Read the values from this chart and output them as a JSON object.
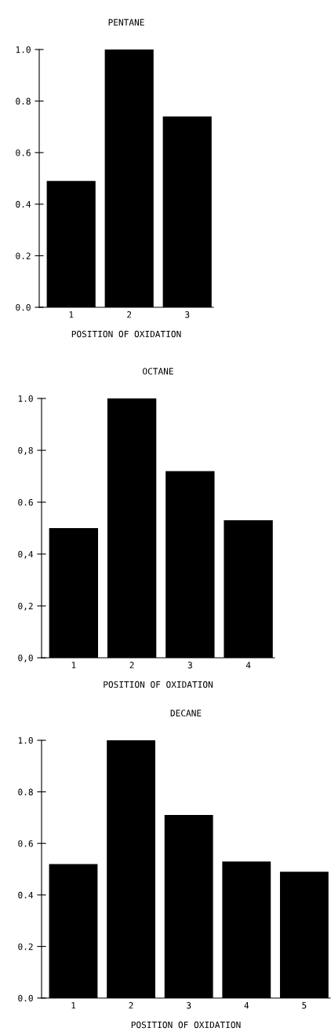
{
  "chart_data": [
    {
      "type": "bar",
      "title": "PENTANE",
      "xlabel": "POSITION OF OXIDATION",
      "categories": [
        "1",
        "2",
        "3"
      ],
      "values": [
        0.49,
        1.0,
        0.74
      ],
      "color": "#000000",
      "ylim": [
        0,
        1.0
      ],
      "yticks": [
        {
          "value": 0,
          "label": "0.0"
        },
        {
          "value": 0.2,
          "label": "0.2"
        },
        {
          "value": 0.4,
          "label": "0.4"
        },
        {
          "value": 0.6,
          "label": "0.6"
        },
        {
          "value": 0.8,
          "label": "0.8"
        },
        {
          "value": 1.0,
          "label": "1.0"
        }
      ],
      "grid": false,
      "legend": false
    },
    {
      "type": "bar",
      "title": "OCTANE",
      "xlabel": "POSITION OF OXIDATION",
      "categories": [
        "1",
        "2",
        "3",
        "4"
      ],
      "values": [
        0.5,
        1.0,
        0.72,
        0.53
      ],
      "color": "#000000",
      "ylim": [
        0,
        1.0
      ],
      "yticks": [
        {
          "value": 0,
          "label": "0,0"
        },
        {
          "value": 0.2,
          "label": "0,2"
        },
        {
          "value": 0.4,
          "label": "0,4"
        },
        {
          "value": 0.6,
          "label": "0.6"
        },
        {
          "value": 0.8,
          "label": "0,8"
        },
        {
          "value": 1.0,
          "label": "1.0"
        }
      ],
      "grid": false,
      "legend": false
    },
    {
      "type": "bar",
      "title": "DECANE",
      "xlabel": "POSITION OF OXIDATION",
      "categories": [
        "1",
        "2",
        "3",
        "4",
        "5"
      ],
      "values": [
        0.52,
        1.0,
        0.71,
        0.53,
        0.49
      ],
      "color": "#000000",
      "ylim": [
        0,
        1.0
      ],
      "yticks": [
        {
          "value": 0,
          "label": "0.0"
        },
        {
          "value": 0.2,
          "label": "0.2"
        },
        {
          "value": 0.4,
          "label": "0.4"
        },
        {
          "value": 0.6,
          "label": "0.6"
        },
        {
          "value": 0.8,
          "label": "0.8"
        },
        {
          "value": 1.0,
          "label": "1.0"
        }
      ],
      "grid": false,
      "legend": false
    }
  ]
}
